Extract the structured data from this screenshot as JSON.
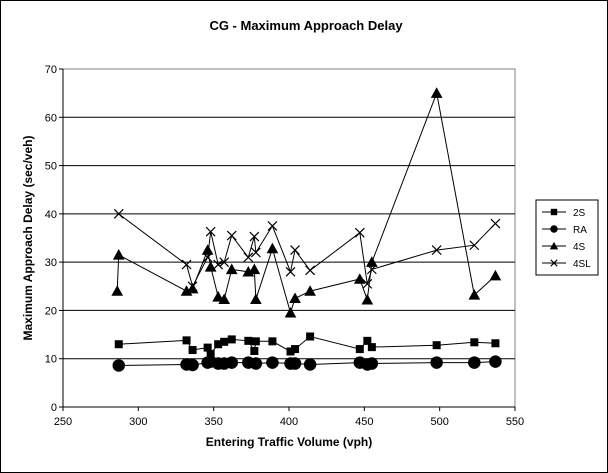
{
  "chart_data": {
    "type": "line",
    "title": "CG - Maximum Approach Delay",
    "xlabel": "Entering Traffic Volume (vph)",
    "ylabel": "Maximum Approach Delay (sec/veh)",
    "xlim": [
      250,
      550
    ],
    "ylim": [
      0,
      70
    ],
    "xticks": [
      "250",
      "300",
      "350",
      "400",
      "450",
      "500",
      "550"
    ],
    "yticks": [
      "0",
      "10",
      "20",
      "30",
      "40",
      "50",
      "60",
      "70"
    ],
    "grid": "horizontal",
    "legend_position": "right",
    "series": [
      {
        "name": "2S",
        "marker": "square",
        "x": [
          287,
          332,
          336,
          346,
          348,
          353,
          357,
          362,
          373,
          377,
          378,
          389,
          401,
          404,
          414,
          447,
          452,
          455,
          498,
          523,
          537
        ],
        "y": [
          13,
          13.8,
          11.8,
          12.3,
          11,
          13,
          13.5,
          14,
          13.7,
          11.6,
          13.6,
          13.6,
          11.5,
          12,
          14.6,
          12,
          13.7,
          12.4,
          12.8,
          13.4,
          13.2
        ]
      },
      {
        "name": "RA",
        "marker": "circle",
        "x": [
          287,
          332,
          336,
          346,
          348,
          353,
          357,
          362,
          373,
          378,
          389,
          401,
          404,
          414,
          447,
          452,
          455,
          498,
          523,
          537
        ],
        "y": [
          8.6,
          8.8,
          8.7,
          9.2,
          9.4,
          9,
          9,
          9.2,
          9.2,
          9,
          9.2,
          9,
          9,
          8.8,
          9.2,
          8.8,
          9,
          9.2,
          9.2,
          9.4
        ]
      },
      {
        "name": "4S",
        "marker": "triangle",
        "x": [
          286,
          287,
          332,
          336,
          346,
          348,
          353,
          357,
          362,
          373,
          377,
          378,
          389,
          401,
          404,
          414,
          447,
          452,
          455,
          498,
          523,
          537
        ],
        "y": [
          24,
          31.5,
          24,
          24.5,
          32.5,
          29,
          22.8,
          22.3,
          28.5,
          28,
          28.5,
          22.3,
          32.8,
          19.5,
          22.5,
          24,
          26.5,
          22.2,
          30,
          65,
          23.2,
          27.2
        ]
      },
      {
        "name": "4SL",
        "marker": "x",
        "x": [
          287,
          332,
          336,
          346,
          348,
          353,
          357,
          362,
          373,
          377,
          378,
          389,
          401,
          404,
          414,
          447,
          452,
          455,
          498,
          523,
          537
        ],
        "y": [
          40,
          29.5,
          25,
          31,
          36.3,
          29.5,
          30,
          35.5,
          31,
          35.3,
          32,
          37.5,
          28,
          32.5,
          28.3,
          36.1,
          25.5,
          28.5,
          32.5,
          33.5,
          38
        ]
      }
    ]
  }
}
